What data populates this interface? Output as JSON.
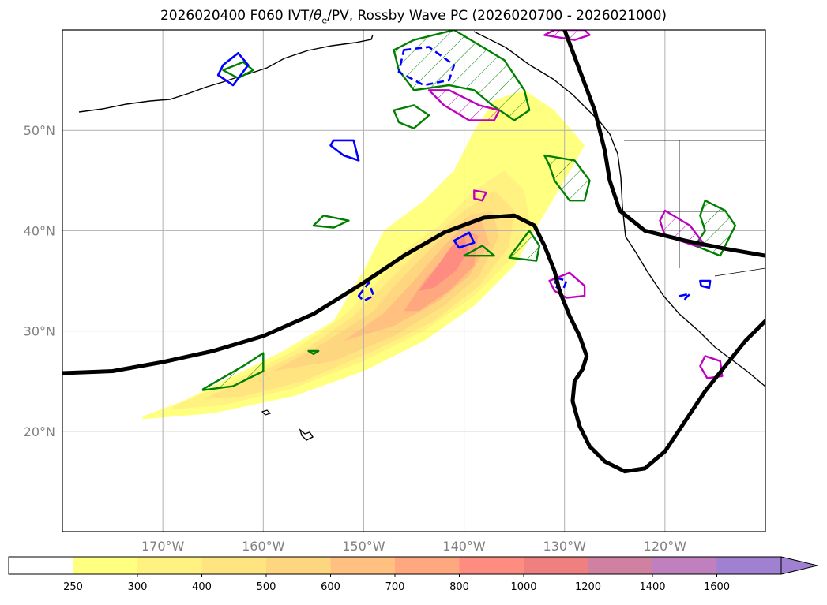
{
  "chart_data": {
    "type": "contour-map",
    "title": "2026020400 F060 IVT/θe/PV, Rossby Wave PC (2026020700 - 2026021000)",
    "title_parts": {
      "prefix": "2026020400 F060 IVT/",
      "theta": "θ",
      "sub": "e",
      "suffix": "/PV, Rossby Wave PC (2026020700 - 2026021000)"
    },
    "region": {
      "lon_range": [
        -180,
        -110
      ],
      "lat_range": [
        10,
        60
      ]
    },
    "lat_ticks": [
      {
        "value": 20,
        "label": "20°N"
      },
      {
        "value": 30,
        "label": "30°N"
      },
      {
        "value": 40,
        "label": "40°N"
      },
      {
        "value": 50,
        "label": "50°N"
      }
    ],
    "lon_ticks": [
      {
        "value": -170,
        "label": "170°W"
      },
      {
        "value": -160,
        "label": "160°W"
      },
      {
        "value": -150,
        "label": "150°W"
      },
      {
        "value": -140,
        "label": "140°W"
      },
      {
        "value": -130,
        "label": "130°W"
      },
      {
        "value": -120,
        "label": "120°W"
      }
    ],
    "ivt_colorbar": {
      "variable": "IVT",
      "levels": [
        250,
        300,
        400,
        500,
        600,
        700,
        800,
        1000,
        1200,
        1400,
        1600
      ],
      "level_labels": [
        "250",
        "300",
        "400",
        "500",
        "600",
        "700",
        "800",
        "1000",
        "1200",
        "1400",
        "1600"
      ],
      "colors": [
        "#ffffff",
        "#ffff80",
        "#fff280",
        "#ffe480",
        "#ffd680",
        "#ffc080",
        "#ffa880",
        "#ff8c80",
        "#f08080",
        "#d080a0",
        "#c080c0",
        "#a080d0"
      ],
      "extend": "max"
    },
    "ivt_regions": [
      {
        "level": 250,
        "points": [
          [
            -172,
            21.5
          ],
          [
            -168,
            23
          ],
          [
            -163,
            25.5
          ],
          [
            -158,
            28
          ],
          [
            -153,
            31
          ],
          [
            -150,
            36
          ],
          [
            -148,
            40
          ],
          [
            -144,
            43
          ],
          [
            -141,
            46
          ],
          [
            -139,
            50
          ],
          [
            -137,
            53
          ],
          [
            -134,
            54
          ],
          [
            -131,
            52
          ],
          [
            -128,
            48.5
          ],
          [
            -130,
            45
          ],
          [
            -133,
            40
          ],
          [
            -135,
            36.5
          ],
          [
            -139,
            32.5
          ],
          [
            -144,
            29
          ],
          [
            -150,
            26
          ],
          [
            -157,
            23.5
          ],
          [
            -165,
            21.8
          ],
          [
            -172,
            21.2
          ]
        ]
      },
      {
        "level": 300,
        "points": [
          [
            -169,
            22.5
          ],
          [
            -163,
            25
          ],
          [
            -157,
            28
          ],
          [
            -152,
            31.5
          ],
          [
            -148.5,
            35
          ],
          [
            -146,
            38
          ],
          [
            -142.5,
            40.5
          ],
          [
            -139,
            44
          ],
          [
            -136,
            46
          ],
          [
            -134,
            44
          ],
          [
            -133.5,
            41
          ],
          [
            -135.5,
            37
          ],
          [
            -139,
            33.5
          ],
          [
            -144,
            30
          ],
          [
            -150,
            27
          ],
          [
            -157,
            24.3
          ],
          [
            -164,
            22.6
          ],
          [
            -169,
            22.2
          ]
        ]
      },
      {
        "level": 400,
        "points": [
          [
            -166,
            23.2
          ],
          [
            -161,
            25.5
          ],
          [
            -156,
            28
          ],
          [
            -151,
            31.5
          ],
          [
            -147,
            35.5
          ],
          [
            -143.5,
            39
          ],
          [
            -140,
            42
          ],
          [
            -137,
            44
          ],
          [
            -135,
            42
          ],
          [
            -135.5,
            38.5
          ],
          [
            -138.5,
            34.5
          ],
          [
            -143,
            31
          ],
          [
            -149,
            28
          ],
          [
            -156,
            25
          ],
          [
            -162,
            23.5
          ]
        ]
      },
      {
        "level": 500,
        "points": [
          [
            -159,
            26
          ],
          [
            -154,
            28.8
          ],
          [
            -149,
            32
          ],
          [
            -146,
            35.5
          ],
          [
            -142.5,
            39
          ],
          [
            -139.5,
            41.5
          ],
          [
            -137.2,
            42
          ],
          [
            -136.5,
            39.5
          ],
          [
            -138.5,
            35.5
          ],
          [
            -142,
            32.5
          ],
          [
            -147,
            29.5
          ],
          [
            -153,
            27
          ]
        ]
      },
      {
        "level": 600,
        "points": [
          [
            -152,
            29
          ],
          [
            -148,
            31.8
          ],
          [
            -145,
            35
          ],
          [
            -142,
            38.5
          ],
          [
            -140,
            40.5
          ],
          [
            -138.3,
            41
          ],
          [
            -137.5,
            38.8
          ],
          [
            -139.5,
            35.5
          ],
          [
            -142.5,
            33
          ],
          [
            -147,
            30.5
          ]
        ]
      },
      {
        "level": 700,
        "points": [
          [
            -146,
            32
          ],
          [
            -144,
            35
          ],
          [
            -141.5,
            37.8
          ],
          [
            -139.6,
            40
          ],
          [
            -138.6,
            39.5
          ],
          [
            -139,
            36.5
          ],
          [
            -141.5,
            34
          ],
          [
            -144.5,
            32
          ]
        ]
      },
      {
        "level": 800,
        "points": [
          [
            -144.5,
            34
          ],
          [
            -143,
            36
          ],
          [
            -141.2,
            38.5
          ],
          [
            -140,
            39.5
          ],
          [
            -139.6,
            38
          ],
          [
            -140.8,
            36
          ],
          [
            -143,
            34.3
          ]
        ]
      }
    ],
    "rossby_wave_line": {
      "points": [
        [
          -180,
          25.8
        ],
        [
          -175,
          26
        ],
        [
          -170,
          26.9
        ],
        [
          -165,
          28
        ],
        [
          -160,
          29.5
        ],
        [
          -155,
          31.7
        ],
        [
          -150,
          34.8
        ],
        [
          -146,
          37.5
        ],
        [
          -142,
          39.8
        ],
        [
          -138,
          41.3
        ],
        [
          -135,
          41.5
        ],
        [
          -133,
          40.5
        ],
        [
          -132,
          38.5
        ],
        [
          -131,
          36
        ],
        [
          -130.5,
          34
        ],
        [
          -129.5,
          31.5
        ],
        [
          -128.5,
          29.5
        ],
        [
          -127.8,
          27.5
        ],
        [
          -128.2,
          26.2
        ],
        [
          -129,
          25
        ],
        [
          -129.2,
          23
        ],
        [
          -128.5,
          20.5
        ],
        [
          -127.5,
          18.5
        ],
        [
          -126,
          17
        ],
        [
          -124,
          16
        ],
        [
          -122,
          16.3
        ],
        [
          -120,
          18
        ],
        [
          -118,
          21
        ],
        [
          -116,
          24
        ],
        [
          -114,
          26.5
        ],
        [
          -112,
          29
        ],
        [
          -110,
          31
        ]
      ]
    },
    "rossby_wave_line_2": {
      "points": [
        [
          -130,
          60
        ],
        [
          -128.5,
          56
        ],
        [
          -127,
          52
        ],
        [
          -126,
          48
        ],
        [
          -125.5,
          45
        ],
        [
          -124.5,
          42
        ],
        [
          -122,
          40
        ],
        [
          -118,
          39
        ],
        [
          -114,
          38.2
        ],
        [
          -110,
          37.5
        ]
      ]
    },
    "pv_green_contours": [
      {
        "points": [
          [
            -166,
            24.2
          ],
          [
            -162,
            26.5
          ],
          [
            -160,
            27.8
          ],
          [
            -160,
            26
          ],
          [
            -163,
            24.5
          ],
          [
            -166,
            24.1
          ]
        ],
        "hatched": true
      },
      {
        "points": [
          [
            -147,
            58
          ],
          [
            -145,
            59
          ],
          [
            -141,
            60
          ],
          [
            -136,
            57
          ],
          [
            -134,
            54
          ],
          [
            -133.5,
            52
          ],
          [
            -135,
            51
          ],
          [
            -137.2,
            52.5
          ],
          [
            -139,
            54
          ],
          [
            -141.5,
            54.5
          ],
          [
            -145,
            54
          ],
          [
            -146.5,
            56
          ],
          [
            -147,
            58
          ]
        ],
        "hatched": true
      },
      {
        "points": [
          [
            -147,
            52
          ],
          [
            -145,
            52.5
          ],
          [
            -143.5,
            51.5
          ],
          [
            -145,
            50.2
          ],
          [
            -146.5,
            50.8
          ]
        ],
        "hatched": false
      },
      {
        "points": [
          [
            -132,
            47.5
          ],
          [
            -129,
            47
          ],
          [
            -127.5,
            45
          ],
          [
            -128,
            43
          ],
          [
            -129.5,
            43
          ],
          [
            -131,
            45
          ],
          [
            -131.5,
            46.5
          ]
        ],
        "hatched": true
      },
      {
        "points": [
          [
            -135,
            38
          ],
          [
            -133.5,
            40
          ],
          [
            -132.5,
            38.5
          ],
          [
            -132.8,
            37
          ],
          [
            -135.5,
            37.3
          ]
        ],
        "hatched": true
      },
      {
        "points": [
          [
            -116,
            43
          ],
          [
            -114,
            42
          ],
          [
            -113,
            40.5
          ],
          [
            -114.5,
            37.5
          ],
          [
            -117,
            38.5
          ],
          [
            -116,
            40
          ],
          [
            -116.5,
            41.5
          ]
        ],
        "hatched": true
      },
      {
        "points": [
          [
            -164,
            56
          ],
          [
            -162,
            56.8
          ],
          [
            -161,
            56
          ],
          [
            -162.5,
            55.2
          ]
        ],
        "hatched": false
      },
      {
        "points": [
          [
            -154,
            41.5
          ],
          [
            -151.5,
            41
          ],
          [
            -153,
            40.3
          ],
          [
            -155,
            40.5
          ]
        ],
        "hatched": false
      },
      {
        "points": [
          [
            -155.5,
            28
          ],
          [
            -154.5,
            28
          ],
          [
            -155,
            27.7
          ]
        ],
        "hatched": false
      },
      {
        "points": [
          [
            -140,
            37.5
          ],
          [
            -137,
            37.5
          ],
          [
            -138.2,
            38.5
          ]
        ],
        "hatched": false
      }
    ],
    "theta_blue_contours": [
      {
        "points": [
          [
            -164,
            56.5
          ],
          [
            -162.5,
            57.7
          ],
          [
            -161.5,
            56.5
          ],
          [
            -163,
            54.5
          ],
          [
            -164.5,
            55.5
          ]
        ],
        "dashed": false
      },
      {
        "points": [
          [
            -153,
            49
          ],
          [
            -151,
            49
          ],
          [
            -150.5,
            47
          ],
          [
            -152,
            47.5
          ],
          [
            -153.3,
            48.5
          ]
        ],
        "dashed": false
      },
      {
        "points": [
          [
            -150.5,
            33.5
          ],
          [
            -149.5,
            34.8
          ],
          [
            -149,
            33.5
          ],
          [
            -150,
            33
          ]
        ],
        "dashed": true
      },
      {
        "points": [
          [
            -146,
            58
          ],
          [
            -143.5,
            58.3
          ],
          [
            -141,
            56.5
          ],
          [
            -141.5,
            55
          ],
          [
            -144,
            54.5
          ],
          [
            -146.5,
            55.8
          ]
        ],
        "dashed": true
      },
      {
        "points": [
          [
            -141,
            39
          ],
          [
            -139.5,
            39.8
          ],
          [
            -139,
            38.8
          ],
          [
            -140.5,
            38.3
          ]
        ],
        "dashed": false
      },
      {
        "points": [
          [
            -130.8,
            35.3
          ],
          [
            -129.8,
            35
          ],
          [
            -130.2,
            34
          ],
          [
            -131,
            34.5
          ]
        ],
        "dashed": true
      },
      {
        "points": [
          [
            -116.5,
            35
          ],
          [
            -115.5,
            35
          ],
          [
            -115.6,
            34.3
          ],
          [
            -116.4,
            34.5
          ]
        ],
        "dashed": false
      },
      {
        "points": [
          [
            -118.5,
            33.5
          ],
          [
            -117.5,
            33.7
          ],
          [
            -118,
            33.2
          ]
        ],
        "dashed": true
      }
    ],
    "theta_magenta_contours": [
      {
        "points": [
          [
            -141.5,
            54
          ],
          [
            -138.5,
            52.5
          ],
          [
            -136.5,
            52
          ],
          [
            -137,
            51
          ],
          [
            -139.5,
            51
          ],
          [
            -142,
            52.5
          ],
          [
            -143.5,
            54
          ]
        ],
        "hatched": true
      },
      {
        "points": [
          [
            -132,
            59.5
          ],
          [
            -129,
            59
          ],
          [
            -127.5,
            59.5
          ],
          [
            -128,
            60
          ],
          [
            -131,
            60
          ]
        ],
        "hatched": true
      },
      {
        "points": [
          [
            -131.5,
            35
          ],
          [
            -129.5,
            35.8
          ],
          [
            -128,
            34.5
          ],
          [
            -128,
            33.5
          ],
          [
            -129.8,
            33.3
          ],
          [
            -131,
            34
          ]
        ],
        "hatched": false
      },
      {
        "points": [
          [
            -120,
            42
          ],
          [
            -117.5,
            40.5
          ],
          [
            -116,
            38.5
          ],
          [
            -117,
            38.5
          ],
          [
            -120,
            39.5
          ],
          [
            -120.5,
            41
          ]
        ],
        "hatched": true
      },
      {
        "points": [
          [
            -116,
            27.5
          ],
          [
            -114.5,
            27
          ],
          [
            -114.3,
            25.5
          ],
          [
            -115.8,
            25.3
          ],
          [
            -116.5,
            26.5
          ]
        ],
        "hatched": false
      },
      {
        "points": [
          [
            -139,
            44
          ],
          [
            -137.8,
            43.8
          ],
          [
            -138.2,
            43
          ],
          [
            -139,
            43.2
          ]
        ],
        "hatched": false
      }
    ]
  }
}
